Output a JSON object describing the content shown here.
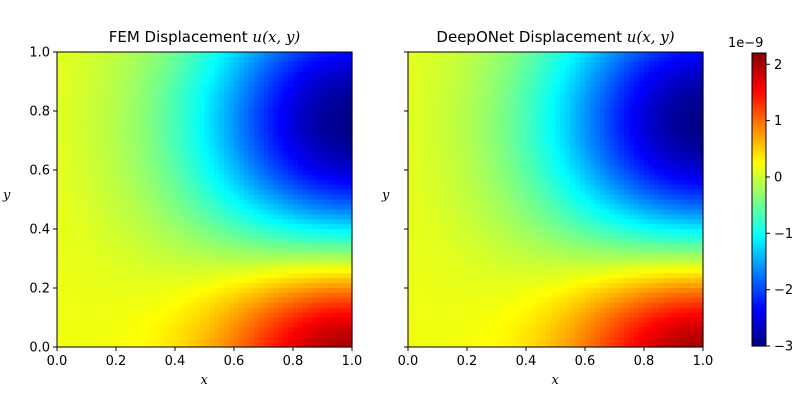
{
  "chart_data": [
    {
      "type": "heatmap",
      "title_text": "FEM Displacement ",
      "title_math": "u(x, y)",
      "xlabel": "x",
      "ylabel": "y",
      "xlim": [
        0.0,
        1.0
      ],
      "ylim": [
        0.0,
        1.0
      ],
      "xticks": [
        "0.0",
        "0.2",
        "0.4",
        "0.6",
        "0.8",
        "1.0"
      ],
      "yticks": [
        "0.0",
        "0.2",
        "0.4",
        "0.6",
        "0.8",
        "1.0"
      ],
      "show_yticklabels": true,
      "colormap": "jet",
      "field": {
        "description_extrema": [
          {
            "kind": "minimum",
            "x": 1.0,
            "y": 0.75,
            "value": -3e-09
          },
          {
            "kind": "maximum",
            "x": 1.0,
            "y": 0.0,
            "value": 2.2e-09
          }
        ],
        "baseline_value": 0.0
      }
    },
    {
      "type": "heatmap",
      "title_text": "DeepONet Displacement ",
      "title_math": "u(x, y)",
      "xlabel": "x",
      "ylabel": "y",
      "xlim": [
        0.0,
        1.0
      ],
      "ylim": [
        0.0,
        1.0
      ],
      "xticks": [
        "0.0",
        "0.2",
        "0.4",
        "0.6",
        "0.8",
        "1.0"
      ],
      "yticks": [
        "0.0",
        "0.2",
        "0.4",
        "0.6",
        "0.8",
        "1.0"
      ],
      "show_yticklabels": false,
      "colormap": "jet",
      "field": {
        "description_extrema": [
          {
            "kind": "minimum",
            "x": 1.0,
            "y": 0.75,
            "value": -3e-09
          },
          {
            "kind": "maximum",
            "x": 1.0,
            "y": 0.0,
            "value": 2.2e-09
          }
        ],
        "baseline_value": 0.0
      }
    }
  ],
  "colorbar": {
    "colormap": "jet",
    "vmin": -3.0,
    "vmax": 2.2,
    "ticks": [
      -3,
      -2,
      -1,
      0,
      1,
      2
    ],
    "tick_labels": [
      "−3",
      "−2",
      "−1",
      "0",
      "1",
      "2"
    ],
    "exponent_label": "1e−9"
  }
}
